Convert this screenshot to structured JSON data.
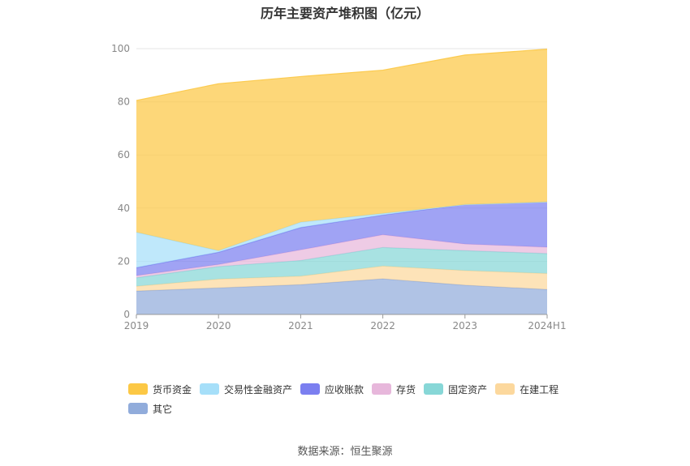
{
  "chart_data": {
    "type": "area",
    "stacked": true,
    "title": "历年主要资产堆积图（亿元）",
    "categories": [
      "2019",
      "2020",
      "2021",
      "2022",
      "2023",
      "2024H1"
    ],
    "ylim": [
      0,
      100
    ],
    "yticks": [
      0,
      20,
      40,
      60,
      80,
      100
    ],
    "grid": true,
    "legend_position": "bottom",
    "series": [
      {
        "name": "其它",
        "color": "#91acdb",
        "values": [
          8.8,
          10.0,
          11.2,
          13.4,
          11.0,
          9.4
        ]
      },
      {
        "name": "在建工程",
        "color": "#fcd89d",
        "values": [
          1.8,
          3.3,
          3.2,
          4.8,
          5.5,
          6.0
        ]
      },
      {
        "name": "固定资产",
        "color": "#87d7d7",
        "values": [
          3.2,
          4.7,
          5.9,
          7.0,
          7.5,
          7.5
        ]
      },
      {
        "name": "存货",
        "color": "#e7b7db",
        "values": [
          0.8,
          0.8,
          4.0,
          4.8,
          2.5,
          2.4
        ]
      },
      {
        "name": "应收账款",
        "color": "#7b7ff0",
        "values": [
          3.0,
          4.6,
          8.4,
          7.4,
          14.8,
          17.0
        ]
      },
      {
        "name": "交易性金融资产",
        "color": "#a6dff9",
        "values": [
          13.3,
          0.6,
          2.0,
          0.6,
          0.0,
          0.0
        ]
      },
      {
        "name": "货币资金",
        "color": "#fcc845",
        "values": [
          49.6,
          62.8,
          54.8,
          53.9,
          56.3,
          57.5
        ]
      }
    ],
    "legend_order": [
      "货币资金",
      "交易性金融资产",
      "应收账款",
      "存货",
      "固定资产",
      "在建工程",
      "其它"
    ]
  },
  "source": "数据来源：恒生聚源"
}
